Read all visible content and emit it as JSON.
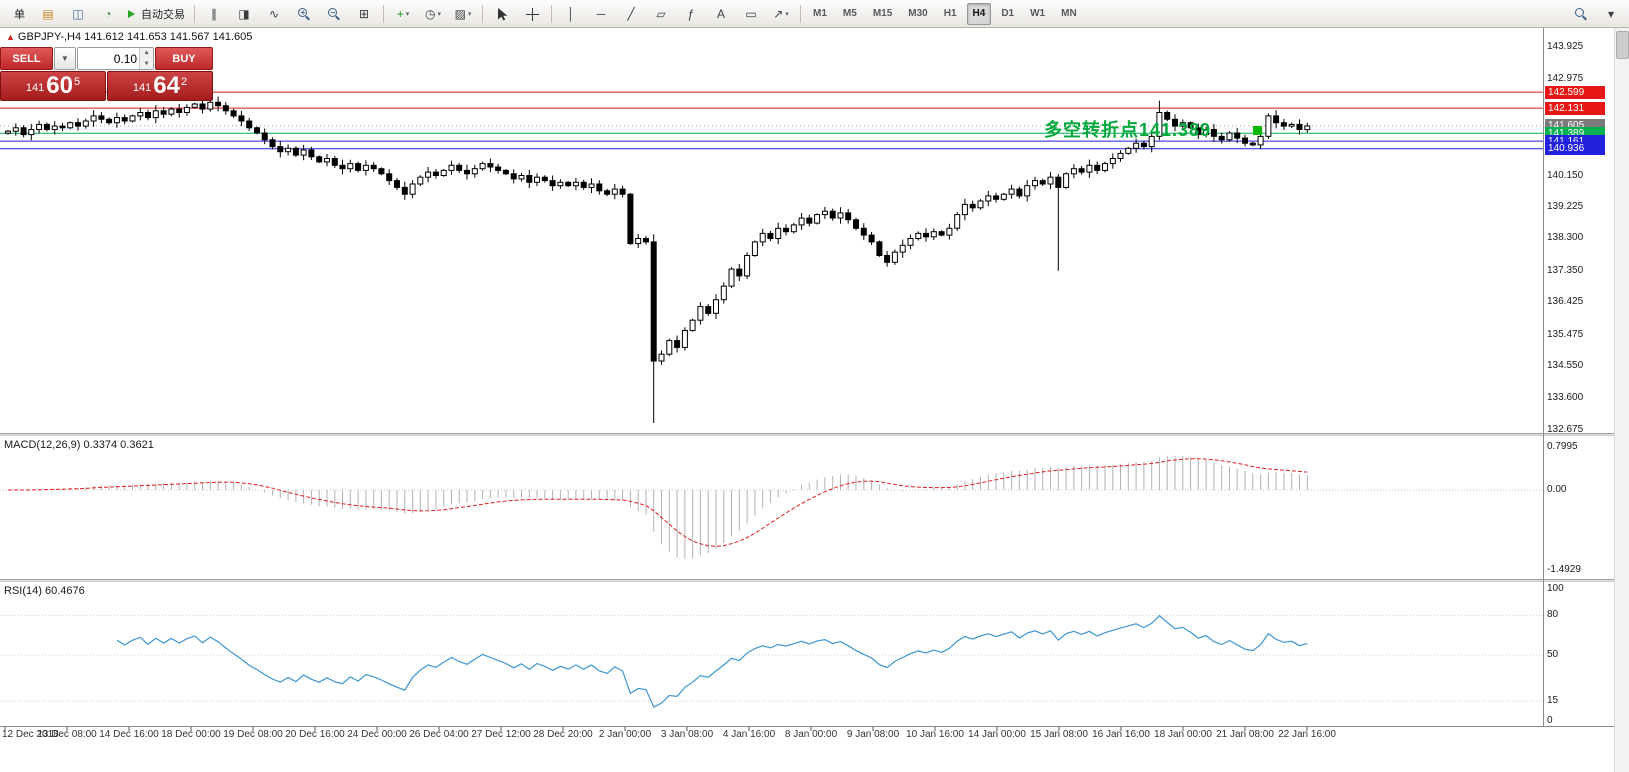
{
  "toolbar": {
    "groups": [
      {
        "name": "file-group",
        "items": [
          {
            "name": "new-order-button",
            "text": "单"
          },
          {
            "name": "charts-grid-icon",
            "glyph": "▤",
            "color": "#c8882a"
          },
          {
            "name": "profiles-icon",
            "glyph": "◫",
            "color": "#4169a8"
          },
          {
            "name": "data-window-icon",
            "glyph": "◔",
            "color": "#3f8f3f"
          },
          {
            "name": "auto-trading-button",
            "text": "自动交易",
            "icon": "play"
          }
        ]
      },
      {
        "name": "chart-type-group",
        "items": [
          {
            "name": "bar-chart-button",
            "glyph": "∥"
          },
          {
            "name": "candlestick-chart-button",
            "glyph": "◨"
          },
          {
            "name": "line-chart-button",
            "glyph": "∿"
          },
          {
            "name": "zoom-in-button",
            "icon": "magnifier-plus"
          },
          {
            "name": "zoom-out-button",
            "icon": "magnifier-minus"
          },
          {
            "name": "tile-windows-button",
            "glyph": "⊞"
          }
        ]
      },
      {
        "name": "objects-group",
        "items": [
          {
            "name": "indicators-button",
            "glyph": "+",
            "color": "#1a9a1a",
            "drop": true
          },
          {
            "name": "periods-button",
            "glyph": "◷",
            "drop": true
          },
          {
            "name": "templates-button",
            "glyph": "▨",
            "drop": true
          }
        ]
      },
      {
        "name": "cursor-group",
        "items": [
          {
            "name": "cursor-button",
            "icon": "cursor"
          },
          {
            "name": "crosshair-button",
            "icon": "crosshair"
          }
        ]
      },
      {
        "name": "drawing-group",
        "items": [
          {
            "name": "vertical-line-button",
            "glyph": "│"
          },
          {
            "name": "horizontal-line-button",
            "glyph": "─"
          },
          {
            "name": "trendline-button",
            "glyph": "╱"
          },
          {
            "name": "channel-button",
            "glyph": "▱"
          },
          {
            "name": "fibonacci-button",
            "glyph": "ƒ"
          },
          {
            "name": "text-button",
            "glyph": "A"
          },
          {
            "name": "label-button",
            "glyph": "▭"
          },
          {
            "name": "arrows-button",
            "glyph": "↗",
            "drop": true
          }
        ]
      }
    ],
    "timeframes": [
      "M1",
      "M5",
      "M15",
      "M30",
      "H1",
      "H4",
      "D1",
      "W1",
      "MN"
    ],
    "active_timeframe": "H4",
    "right_items": [
      {
        "name": "search-icon",
        "icon": "magnifier"
      },
      {
        "name": "more-button",
        "glyph": "▾"
      }
    ]
  },
  "chart": {
    "symbol_label": "GBPJPY-,H4  141.612 141.653 141.567 141.605",
    "trade_panel": {
      "sell_label": "SELL",
      "buy_label": "BUY",
      "volume": "0.10",
      "sell_price": {
        "prefix": "141",
        "big": "60",
        "sup": "5"
      },
      "buy_price": {
        "prefix": "141",
        "big": "64",
        "sup": "2"
      }
    },
    "annotation": {
      "text": "多空转折点141.389",
      "color": "#00a83c"
    }
  },
  "chart_data": {
    "type": "candlestick",
    "symbol": "GBPJPY-",
    "timeframe": "H4",
    "ohlc_display": {
      "open": "141.612",
      "high": "141.653",
      "low": "141.567",
      "close": "141.605"
    },
    "closes": [
      141.45,
      141.55,
      141.35,
      141.5,
      141.65,
      141.5,
      141.6,
      141.55,
      141.7,
      141.6,
      141.75,
      141.9,
      141.8,
      141.7,
      141.85,
      141.75,
      141.9,
      142.0,
      141.85,
      142.05,
      141.95,
      142.1,
      142.0,
      142.15,
      142.25,
      142.1,
      142.3,
      142.2,
      142.05,
      141.9,
      141.75,
      141.55,
      141.4,
      141.2,
      141.0,
      140.85,
      140.95,
      140.75,
      140.9,
      140.7,
      140.55,
      140.65,
      140.45,
      140.35,
      140.5,
      140.3,
      140.45,
      140.35,
      140.2,
      140.0,
      139.8,
      139.6,
      139.9,
      140.1,
      140.25,
      140.15,
      140.3,
      140.45,
      140.3,
      140.2,
      140.35,
      140.5,
      140.4,
      140.3,
      140.2,
      140.05,
      140.15,
      139.95,
      140.1,
      140.0,
      139.85,
      139.95,
      139.85,
      139.95,
      139.8,
      139.9,
      139.7,
      139.6,
      139.75,
      139.6,
      138.15,
      138.3,
      138.2,
      134.7,
      134.9,
      135.3,
      135.1,
      135.6,
      135.9,
      136.3,
      136.1,
      136.5,
      136.9,
      137.4,
      137.2,
      137.8,
      138.2,
      138.45,
      138.3,
      138.6,
      138.5,
      138.7,
      138.9,
      138.75,
      139.0,
      139.1,
      138.9,
      139.05,
      138.85,
      138.6,
      138.4,
      138.2,
      137.8,
      137.6,
      137.9,
      138.1,
      138.3,
      138.45,
      138.35,
      138.5,
      138.4,
      138.6,
      139.0,
      139.3,
      139.2,
      139.4,
      139.55,
      139.45,
      139.6,
      139.75,
      139.55,
      139.85,
      140.0,
      139.9,
      140.1,
      139.8,
      140.2,
      140.35,
      140.25,
      140.45,
      140.3,
      140.5,
      140.65,
      140.8,
      140.95,
      141.1,
      141.0,
      141.3,
      142.0,
      141.8,
      141.6,
      141.7,
      141.55,
      141.35,
      141.5,
      141.3,
      141.2,
      141.4,
      141.25,
      141.1,
      141.05,
      141.3,
      141.9,
      141.7,
      141.6,
      141.65,
      141.5,
      141.605
    ],
    "overrides": {
      "26": {
        "high": 142.4
      },
      "83": {
        "low": 132.88,
        "high": 138.42
      },
      "135": {
        "low": 137.35
      },
      "148": {
        "high": 142.35
      }
    },
    "hlines": [
      {
        "price": 142.599,
        "color": "#e81717"
      },
      {
        "price": 142.131,
        "color": "#e81717"
      },
      {
        "price": 141.389,
        "color": "#00b050"
      },
      {
        "price": 141.161,
        "color": "#2222dd"
      },
      {
        "price": 140.936,
        "color": "#2222dd"
      }
    ],
    "bid_line": {
      "price": 141.605
    },
    "price_axis": {
      "labels": [
        "143.925",
        "142.975",
        "140.150",
        "139.225",
        "138.300",
        "137.350",
        "136.425",
        "135.475",
        "134.550",
        "133.600",
        "132.675"
      ],
      "markers": [
        {
          "text": "142.599",
          "price": 142.599,
          "bg": "#e81717"
        },
        {
          "text": "142.131",
          "price": 142.131,
          "bg": "#e81717"
        },
        {
          "text": "141.605",
          "price": 141.605,
          "bg": "#7a7a7a"
        },
        {
          "text": "141.389",
          "price": 141.389,
          "bg": "#00b050"
        },
        {
          "text": "141.161",
          "price": 141.161,
          "bg": "#2222dd"
        },
        {
          "text": "140.936",
          "price": 140.936,
          "bg": "#2222dd"
        }
      ]
    },
    "time_axis": [
      "12 Dec 2018",
      "13 Dec 08:00",
      "14 Dec 16:00",
      "18 Dec 00:00",
      "19 Dec 08:00",
      "20 Dec 16:00",
      "24 Dec 00:00",
      "26 Dec 04:00",
      "27 Dec 12:00",
      "28 Dec 20:00",
      "2 Jan 00:00",
      "3 Jan 08:00",
      "4 Jan 16:00",
      "8 Jan 00:00",
      "9 Jan 08:00",
      "10 Jan 16:00",
      "14 Jan 00:00",
      "15 Jan 08:00",
      "16 Jan 16:00",
      "18 Jan 00:00",
      "21 Jan 08:00",
      "22 Jan 16:00"
    ],
    "indicators": [
      {
        "name": "macd",
        "label": "MACD(12,26,9) 0.3374 0.3621",
        "params": [
          12,
          26,
          9
        ],
        "values_text": [
          "0.3374",
          "0.3621"
        ],
        "axis": [
          "0.7995",
          "0.00",
          "-1.4929"
        ]
      },
      {
        "name": "rsi",
        "label": "RSI(14) 60.4676",
        "period": 14,
        "value_text": "60.4676",
        "axis": [
          "100",
          "80",
          "50",
          "15",
          "0"
        ],
        "levels": [
          80,
          50,
          15
        ]
      }
    ]
  }
}
